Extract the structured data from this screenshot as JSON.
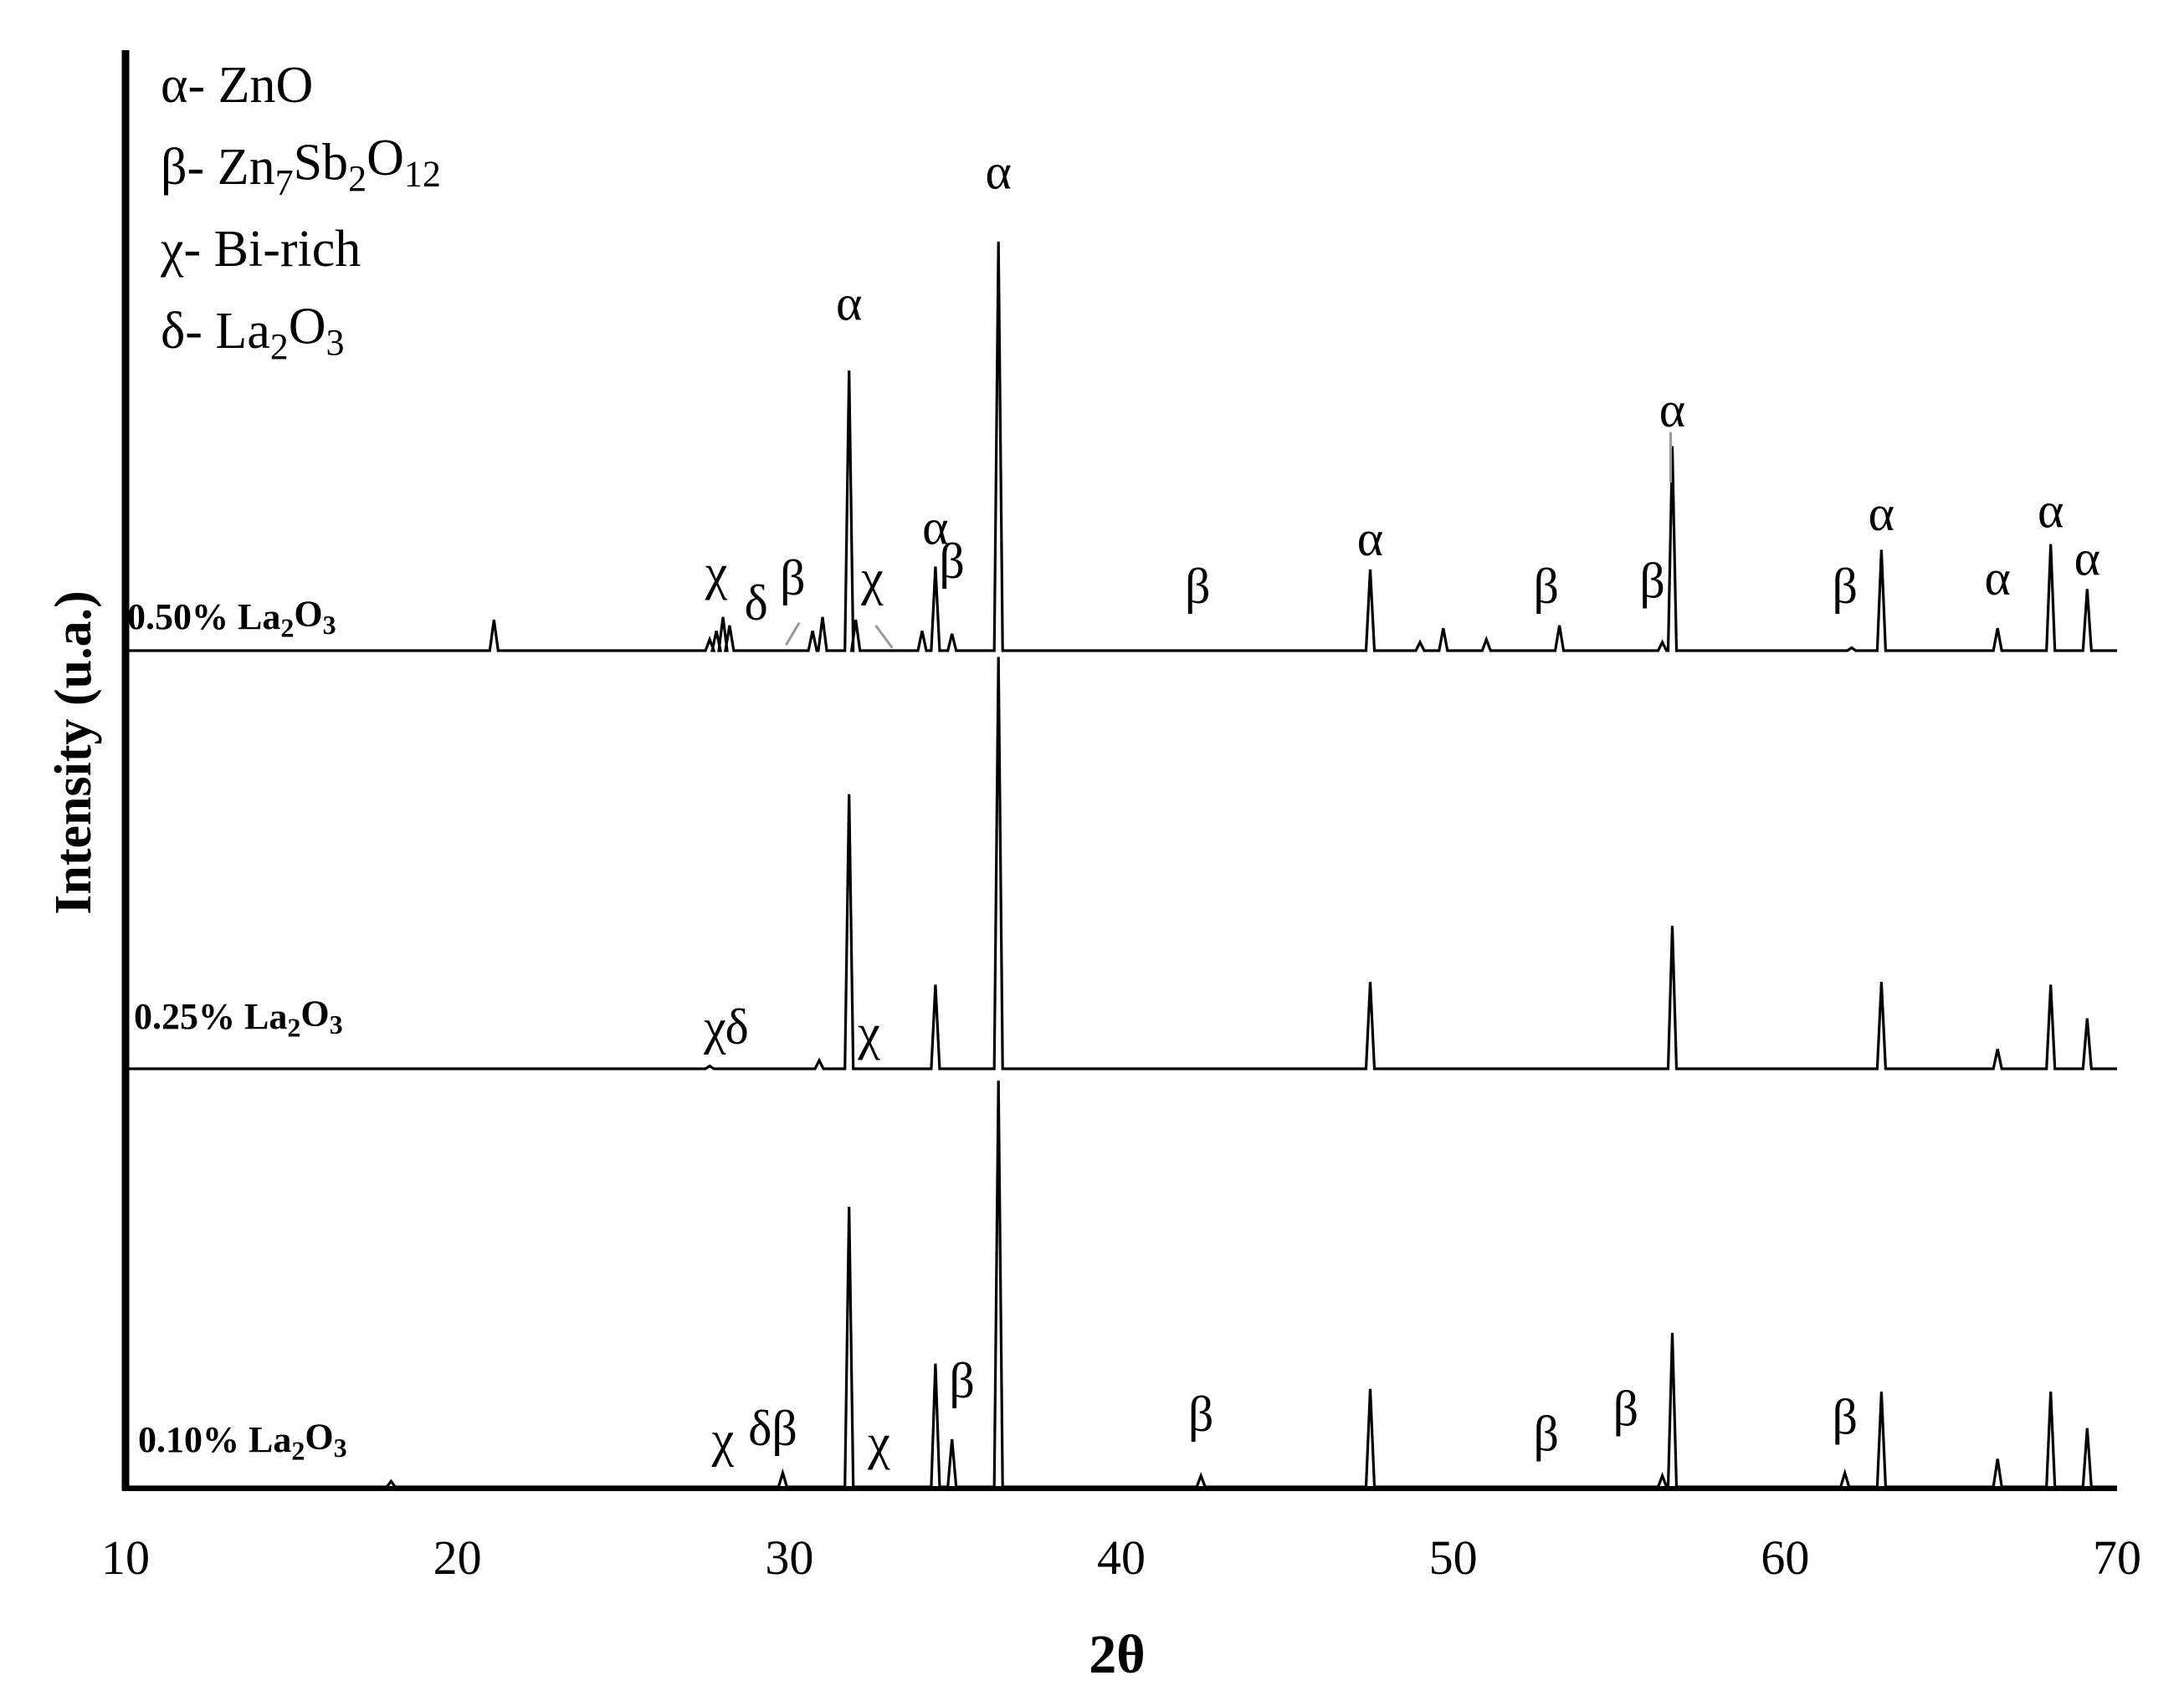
{
  "chart_data": {
    "type": "line",
    "title": "",
    "xlabel": "2θ",
    "ylabel": "Intensity (u.a.)",
    "xlim": [
      10,
      70
    ],
    "xticks": [
      "10",
      "20",
      "30",
      "40",
      "50",
      "60",
      "70"
    ],
    "grid": false,
    "legend": {
      "placement": "top-left",
      "entries": [
        {
          "symbol": "α",
          "sep": "- ",
          "parts": [
            {
              "t": "ZnO"
            }
          ]
        },
        {
          "symbol": "β",
          "sep": "- ",
          "parts": [
            {
              "t": "Zn"
            },
            {
              "t": "7",
              "sub": true
            },
            {
              "t": "Sb"
            },
            {
              "t": "2",
              "sub": true
            },
            {
              "t": "O"
            },
            {
              "t": "12",
              "sub": true
            }
          ]
        },
        {
          "symbol": "χ",
          "sep": "- ",
          "parts": [
            {
              "t": "Bi-rich"
            }
          ]
        },
        {
          "symbol": "δ",
          "sep": "- ",
          "parts": [
            {
              "t": "La"
            },
            {
              "t": "2",
              "sub": true
            },
            {
              "t": "O"
            },
            {
              "t": "3",
              "sub": true
            }
          ]
        }
      ]
    },
    "series": [
      {
        "name": "0.50% La2O3",
        "label_parts": [
          {
            "t": "0.50% La"
          },
          {
            "t": "2",
            "sub": true
          },
          {
            "t": "O"
          },
          {
            "t": "3",
            "sub": true
          }
        ],
        "peaks": [
          [
            21.1,
            0.11
          ],
          [
            27.6,
            0.04
          ],
          [
            27.8,
            0.07
          ],
          [
            28.0,
            0.12
          ],
          [
            28.2,
            0.09
          ],
          [
            30.7,
            0.07
          ],
          [
            31.0,
            0.12
          ],
          [
            31.8,
            1.0
          ],
          [
            32.0,
            0.11
          ],
          [
            34.0,
            0.07
          ],
          [
            34.4,
            0.3
          ],
          [
            34.9,
            0.06
          ],
          [
            36.3,
            1.46
          ],
          [
            47.5,
            0.29
          ],
          [
            49.0,
            0.03
          ],
          [
            49.7,
            0.08
          ],
          [
            51.0,
            0.04
          ],
          [
            53.2,
            0.09
          ],
          [
            56.3,
            0.03
          ],
          [
            56.6,
            0.73
          ],
          [
            62.0,
            0.01
          ],
          [
            62.9,
            0.36
          ],
          [
            66.4,
            0.08
          ],
          [
            68.0,
            0.38
          ],
          [
            69.1,
            0.22
          ]
        ],
        "peak_labels": [
          {
            "text": "χ",
            "x": 27.8,
            "y": 0.22
          },
          {
            "text": "δ",
            "x": 29.0,
            "y": 0.11
          },
          {
            "text": "β",
            "x": 30.1,
            "y": 0.2
          },
          {
            "text": "α",
            "x": 31.8,
            "y": 1.18
          },
          {
            "text": "χ",
            "x": 32.5,
            "y": 0.2
          },
          {
            "text": "α",
            "x": 34.4,
            "y": 0.38
          },
          {
            "text": "β",
            "x": 34.9,
            "y": 0.26
          },
          {
            "text": "α",
            "x": 36.3,
            "y": 1.65
          },
          {
            "text": "β",
            "x": 42.3,
            "y": 0.17
          },
          {
            "text": "α",
            "x": 47.5,
            "y": 0.34
          },
          {
            "text": "β",
            "x": 52.8,
            "y": 0.17
          },
          {
            "text": "β",
            "x": 56.0,
            "y": 0.19
          },
          {
            "text": "α",
            "x": 56.6,
            "y": 0.8
          },
          {
            "text": "β",
            "x": 61.8,
            "y": 0.17
          },
          {
            "text": "α",
            "x": 62.9,
            "y": 0.43
          },
          {
            "text": "α",
            "x": 66.4,
            "y": 0.2
          },
          {
            "text": "α",
            "x": 68.0,
            "y": 0.44
          },
          {
            "text": "α",
            "x": 69.1,
            "y": 0.27
          }
        ]
      },
      {
        "name": "0.25% La2O3",
        "label_parts": [
          {
            "t": "0.25% La"
          },
          {
            "t": "2",
            "sub": true
          },
          {
            "t": "O"
          },
          {
            "t": "3",
            "sub": true
          }
        ],
        "peaks": [
          [
            27.6,
            0.01
          ],
          [
            30.9,
            0.03
          ],
          [
            31.8,
            0.98
          ],
          [
            34.4,
            0.3
          ],
          [
            36.3,
            1.47
          ],
          [
            47.5,
            0.31
          ],
          [
            56.6,
            0.51
          ],
          [
            62.9,
            0.31
          ],
          [
            66.4,
            0.07
          ],
          [
            68.0,
            0.3
          ],
          [
            69.1,
            0.18
          ]
        ],
        "peak_labels": [
          {
            "text": "χδ",
            "x": 28.1,
            "y": 0.09
          },
          {
            "text": "χ",
            "x": 32.4,
            "y": 0.07
          }
        ]
      },
      {
        "name": "0.10% La2O3",
        "label_parts": [
          {
            "t": "0.10% La"
          },
          {
            "t": "2",
            "sub": true
          },
          {
            "t": "O"
          },
          {
            "t": "3",
            "sub": true
          }
        ],
        "peaks": [
          [
            18.0,
            0.02
          ],
          [
            29.8,
            0.05
          ],
          [
            31.8,
            1.0
          ],
          [
            34.4,
            0.44
          ],
          [
            34.9,
            0.17
          ],
          [
            36.3,
            1.45
          ],
          [
            42.4,
            0.04
          ],
          [
            47.5,
            0.35
          ],
          [
            56.3,
            0.04
          ],
          [
            56.6,
            0.55
          ],
          [
            61.8,
            0.05
          ],
          [
            62.9,
            0.34
          ],
          [
            66.4,
            0.1
          ],
          [
            68.0,
            0.34
          ],
          [
            69.1,
            0.21
          ]
        ],
        "peak_labels": [
          {
            "text": "χ",
            "x": 28.0,
            "y": 0.11
          },
          {
            "text": "δβ",
            "x": 29.5,
            "y": 0.15
          },
          {
            "text": "χ",
            "x": 32.7,
            "y": 0.1
          },
          {
            "text": "β",
            "x": 35.2,
            "y": 0.32
          },
          {
            "text": "β",
            "x": 42.4,
            "y": 0.2
          },
          {
            "text": "β",
            "x": 52.8,
            "y": 0.13
          },
          {
            "text": "β",
            "x": 55.2,
            "y": 0.22
          },
          {
            "text": "β",
            "x": 61.8,
            "y": 0.19
          }
        ]
      }
    ]
  }
}
